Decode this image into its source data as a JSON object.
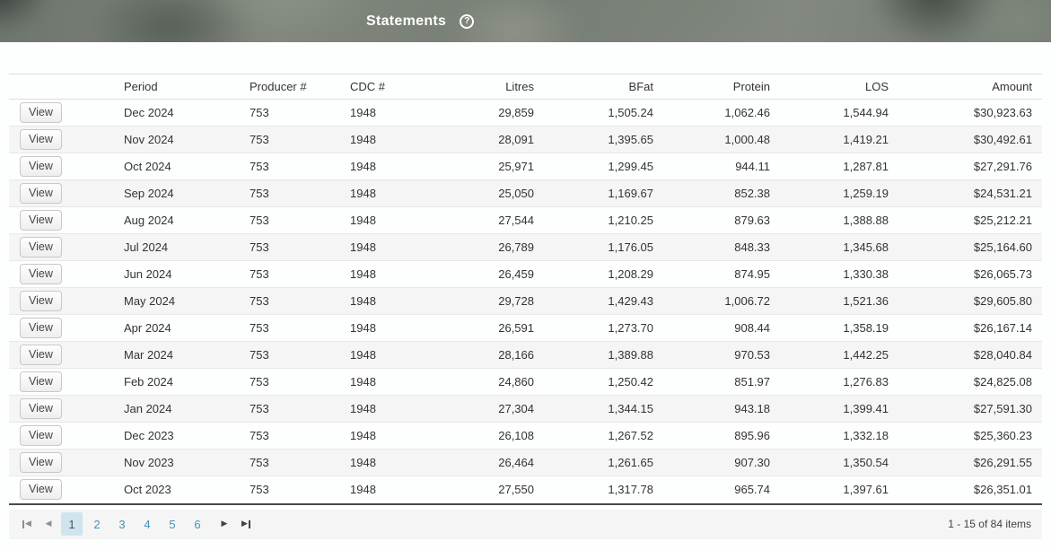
{
  "header": {
    "title": "Statements",
    "help_glyph": "?"
  },
  "table": {
    "column_labels": [
      "",
      "Period",
      "Producer #",
      "CDC #",
      "Litres",
      "BFat",
      "Protein",
      "LOS",
      "Amount"
    ],
    "view_button_label": "View",
    "rows": [
      {
        "period": "Dec 2024",
        "producer_no": "753",
        "cdc_no": "1948",
        "litres": "29,859",
        "bfat": "1,505.24",
        "protein": "1,062.46",
        "los": "1,544.94",
        "amount": "$30,923.63"
      },
      {
        "period": "Nov 2024",
        "producer_no": "753",
        "cdc_no": "1948",
        "litres": "28,091",
        "bfat": "1,395.65",
        "protein": "1,000.48",
        "los": "1,419.21",
        "amount": "$30,492.61"
      },
      {
        "period": "Oct 2024",
        "producer_no": "753",
        "cdc_no": "1948",
        "litres": "25,971",
        "bfat": "1,299.45",
        "protein": "944.11",
        "los": "1,287.81",
        "amount": "$27,291.76"
      },
      {
        "period": "Sep 2024",
        "producer_no": "753",
        "cdc_no": "1948",
        "litres": "25,050",
        "bfat": "1,169.67",
        "protein": "852.38",
        "los": "1,259.19",
        "amount": "$24,531.21"
      },
      {
        "period": "Aug 2024",
        "producer_no": "753",
        "cdc_no": "1948",
        "litres": "27,544",
        "bfat": "1,210.25",
        "protein": "879.63",
        "los": "1,388.88",
        "amount": "$25,212.21"
      },
      {
        "period": "Jul 2024",
        "producer_no": "753",
        "cdc_no": "1948",
        "litres": "26,789",
        "bfat": "1,176.05",
        "protein": "848.33",
        "los": "1,345.68",
        "amount": "$25,164.60"
      },
      {
        "period": "Jun 2024",
        "producer_no": "753",
        "cdc_no": "1948",
        "litres": "26,459",
        "bfat": "1,208.29",
        "protein": "874.95",
        "los": "1,330.38",
        "amount": "$26,065.73"
      },
      {
        "period": "May 2024",
        "producer_no": "753",
        "cdc_no": "1948",
        "litres": "29,728",
        "bfat": "1,429.43",
        "protein": "1,006.72",
        "los": "1,521.36",
        "amount": "$29,605.80"
      },
      {
        "period": "Apr 2024",
        "producer_no": "753",
        "cdc_no": "1948",
        "litres": "26,591",
        "bfat": "1,273.70",
        "protein": "908.44",
        "los": "1,358.19",
        "amount": "$26,167.14"
      },
      {
        "period": "Mar 2024",
        "producer_no": "753",
        "cdc_no": "1948",
        "litres": "28,166",
        "bfat": "1,389.88",
        "protein": "970.53",
        "los": "1,442.25",
        "amount": "$28,040.84"
      },
      {
        "period": "Feb 2024",
        "producer_no": "753",
        "cdc_no": "1948",
        "litres": "24,860",
        "bfat": "1,250.42",
        "protein": "851.97",
        "los": "1,276.83",
        "amount": "$24,825.08"
      },
      {
        "period": "Jan 2024",
        "producer_no": "753",
        "cdc_no": "1948",
        "litres": "27,304",
        "bfat": "1,344.15",
        "protein": "943.18",
        "los": "1,399.41",
        "amount": "$27,591.30"
      },
      {
        "period": "Dec 2023",
        "producer_no": "753",
        "cdc_no": "1948",
        "litres": "26,108",
        "bfat": "1,267.52",
        "protein": "895.96",
        "los": "1,332.18",
        "amount": "$25,360.23"
      },
      {
        "period": "Nov 2023",
        "producer_no": "753",
        "cdc_no": "1948",
        "litres": "26,464",
        "bfat": "1,261.65",
        "protein": "907.30",
        "los": "1,350.54",
        "amount": "$26,291.55"
      },
      {
        "period": "Oct 2023",
        "producer_no": "753",
        "cdc_no": "1948",
        "litres": "27,550",
        "bfat": "1,317.78",
        "protein": "965.74",
        "los": "1,397.61",
        "amount": "$26,351.01"
      }
    ]
  },
  "pagination": {
    "pages": [
      "1",
      "2",
      "3",
      "4",
      "5",
      "6"
    ],
    "current_page": "1",
    "first_glyph": "◀",
    "prev_glyph": "◀",
    "next_glyph": "▶",
    "last_glyph": "▶",
    "info": "1 - 15 of 84 items"
  },
  "colors": {
    "page_link": "#4493b8",
    "selected_page_bg": "#cfe4ee",
    "row_stripe": "#f5f5f5",
    "pager_bg": "#f5f5f5",
    "header_text": "#ffffff"
  }
}
